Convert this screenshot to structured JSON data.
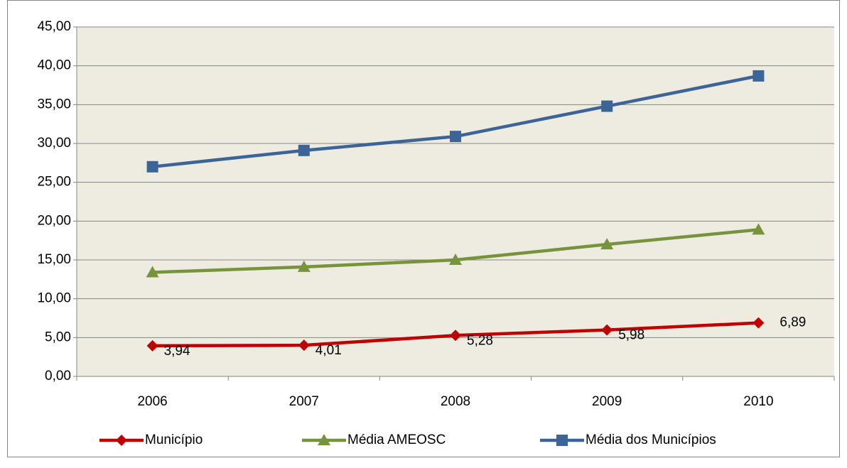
{
  "chart_data": {
    "type": "line",
    "categories": [
      "2006",
      "2007",
      "2008",
      "2009",
      "2010"
    ],
    "series": [
      {
        "name": "Município",
        "color": "#c00000",
        "marker": "diamond",
        "values": [
          3.94,
          4.01,
          5.28,
          5.98,
          6.89
        ],
        "value_labels": [
          "3,94",
          "4,01",
          "5,28",
          "5,98",
          "6,89"
        ]
      },
      {
        "name": "Média AMEOSC",
        "color": "#77933c",
        "marker": "triangle",
        "values": [
          13.4,
          14.1,
          15.0,
          17.0,
          18.9
        ]
      },
      {
        "name": "Média dos Municípios",
        "color": "#3c6496",
        "marker": "square",
        "values": [
          27.0,
          29.1,
          30.9,
          34.8,
          38.7
        ]
      }
    ],
    "ylim": [
      0,
      45
    ],
    "yticks": [
      {
        "value": 0,
        "label": "0,00"
      },
      {
        "value": 5,
        "label": "5,00"
      },
      {
        "value": 10,
        "label": "10,00"
      },
      {
        "value": 15,
        "label": "15,00"
      },
      {
        "value": 20,
        "label": "20,00"
      },
      {
        "value": 25,
        "label": "25,00"
      },
      {
        "value": 30,
        "label": "30,00"
      },
      {
        "value": 35,
        "label": "35,00"
      },
      {
        "value": 40,
        "label": "40,00"
      },
      {
        "value": 45,
        "label": "45,00"
      }
    ],
    "grid": true,
    "plot_background": "#eeece1",
    "legend": "bottom"
  }
}
